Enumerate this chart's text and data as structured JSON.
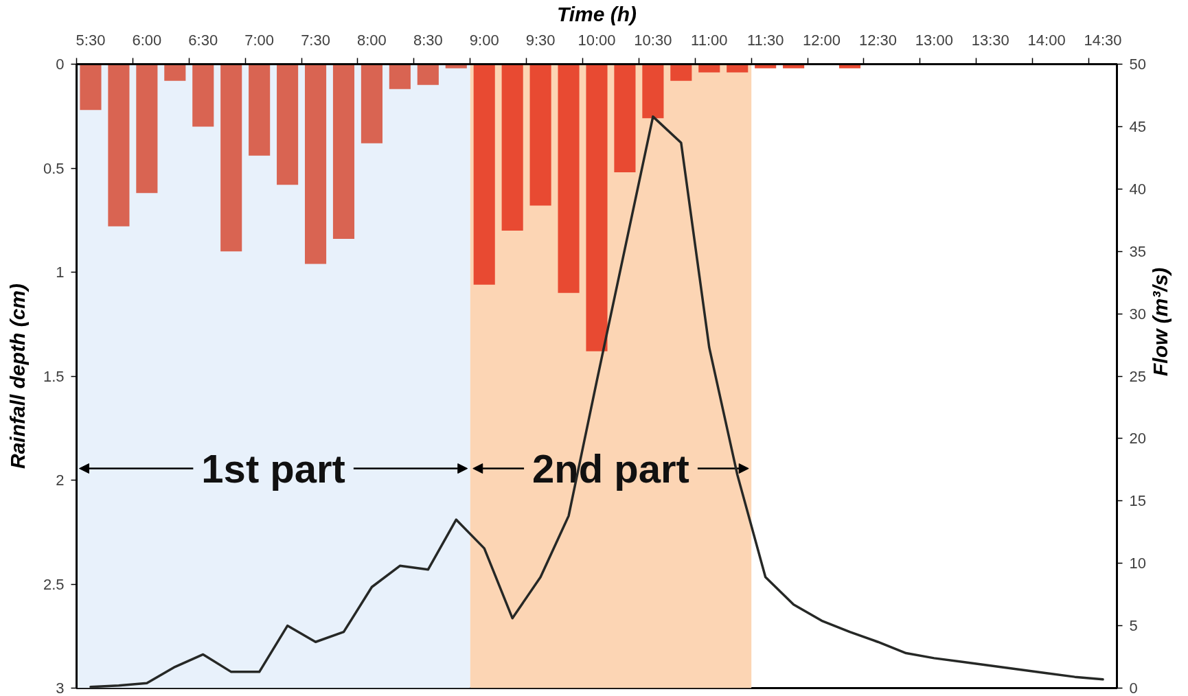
{
  "chart_data": {
    "type": "bar",
    "xlabel": "Time (h)",
    "ylabel": "Rainfall depth (cm)",
    "y2label": "Flow (m³/s)",
    "x": [
      5.5,
      5.75,
      6.0,
      6.25,
      6.5,
      6.75,
      7.0,
      7.25,
      7.5,
      7.75,
      8.0,
      8.25,
      8.5,
      8.75,
      9.0,
      9.25,
      9.5,
      9.75,
      10.0,
      10.25,
      10.5,
      10.75,
      11.0,
      11.25,
      11.5,
      11.75,
      12.0,
      12.25,
      12.5,
      12.75,
      13.0,
      13.25,
      13.5,
      13.75,
      14.0,
      14.25,
      14.5
    ],
    "xlim": [
      5.375,
      14.625
    ],
    "xticks": [
      {
        "value": 5.375,
        "label": null
      },
      {
        "value": 5.5,
        "label": "5:30"
      },
      {
        "value": 5.875,
        "label": null
      },
      {
        "value": 6.0,
        "label": "6:00"
      },
      {
        "value": 6.375,
        "label": null
      },
      {
        "value": 6.5,
        "label": "6:30"
      },
      {
        "value": 6.875,
        "label": null
      },
      {
        "value": 7.0,
        "label": "7:00"
      },
      {
        "value": 7.375,
        "label": null
      },
      {
        "value": 7.5,
        "label": "7:30"
      },
      {
        "value": 7.875,
        "label": null
      },
      {
        "value": 8.0,
        "label": "8:00"
      },
      {
        "value": 8.375,
        "label": null
      },
      {
        "value": 8.5,
        "label": "8:30"
      },
      {
        "value": 8.875,
        "label": null
      },
      {
        "value": 9.0,
        "label": "9:00"
      },
      {
        "value": 9.375,
        "label": null
      },
      {
        "value": 9.5,
        "label": "9:30"
      },
      {
        "value": 9.875,
        "label": null
      },
      {
        "value": 10.0,
        "label": "10:00"
      },
      {
        "value": 10.375,
        "label": null
      },
      {
        "value": 10.5,
        "label": "10:30"
      },
      {
        "value": 10.875,
        "label": null
      },
      {
        "value": 11.0,
        "label": "11:00"
      },
      {
        "value": 11.375,
        "label": null
      },
      {
        "value": 11.5,
        "label": "11:30"
      },
      {
        "value": 11.875,
        "label": null
      },
      {
        "value": 12.0,
        "label": "12:00"
      },
      {
        "value": 12.375,
        "label": null
      },
      {
        "value": 12.5,
        "label": "12:30"
      },
      {
        "value": 12.875,
        "label": null
      },
      {
        "value": 13.0,
        "label": "13:00"
      },
      {
        "value": 13.375,
        "label": null
      },
      {
        "value": 13.5,
        "label": "13:30"
      },
      {
        "value": 13.875,
        "label": null
      },
      {
        "value": 14.0,
        "label": "14:00"
      },
      {
        "value": 14.375,
        "label": null
      },
      {
        "value": 14.5,
        "label": "14:30"
      }
    ],
    "ylim": [
      3,
      0
    ],
    "yticks": [
      0,
      0.5,
      1,
      1.5,
      2,
      2.5,
      3
    ],
    "y2lim": [
      0,
      50
    ],
    "y2ticks": [
      0,
      5,
      10,
      15,
      20,
      25,
      30,
      35,
      40,
      45,
      50
    ],
    "series": [
      {
        "colors": [
          "#d96452",
          "#d96452",
          "#d96452",
          "#d96452",
          "#d96452",
          "#d96452",
          "#d96452",
          "#d96452",
          "#d96452",
          "#d96452",
          "#d96452",
          "#d96452",
          "#d96452",
          "#d96452",
          "#e84a32",
          "#e84a32",
          "#e84a32",
          "#e84a32",
          "#e84a32",
          "#e84a32",
          "#e84a32",
          "#e84a32",
          "#e84a32",
          "#e84a32",
          "#e84a32",
          "#e84a32",
          "#e84a32",
          "#e84a32",
          "#e84a32",
          "#e84a32",
          "#e84a32",
          "#e84a32",
          "#e84a32",
          "#e84a32",
          "#e84a32",
          "#e84a32",
          "#e84a32"
        ],
        "values": [
          0.22,
          0.78,
          0.62,
          0.08,
          0.3,
          0.9,
          0.44,
          0.58,
          0.96,
          0.84,
          0.38,
          0.12,
          0.1,
          0.02,
          1.06,
          0.8,
          0.68,
          1.1,
          1.38,
          0.52,
          0.26,
          0.08,
          0.04,
          0.04,
          0.02,
          0.02,
          null,
          0.02,
          null,
          null,
          null,
          null,
          null,
          null,
          null,
          null,
          null
        ]
      },
      {
        "type": "line",
        "axis": "y2",
        "color": "#262826",
        "values": [
          0.1,
          0.2,
          0.4,
          1.7,
          2.7,
          1.3,
          1.3,
          5.0,
          3.7,
          4.5,
          8.1,
          9.8,
          9.5,
          13.5,
          11.2,
          5.6,
          8.9,
          13.8,
          24.6,
          35.2,
          45.8,
          43.7,
          27.3,
          17.1,
          8.9,
          6.7,
          5.4,
          4.5,
          3.7,
          2.8,
          2.4,
          2.1,
          1.8,
          1.5,
          1.2,
          0.9,
          0.7
        ]
      }
    ],
    "bands": [
      {
        "axis": "x",
        "from": 5.375,
        "to": 8.875,
        "label": "1st part",
        "color": "#e8f1fb"
      },
      {
        "axis": "x",
        "from": 8.875,
        "to": 11.375,
        "label": "2nd part",
        "color": "#fcd5b4"
      }
    ]
  }
}
